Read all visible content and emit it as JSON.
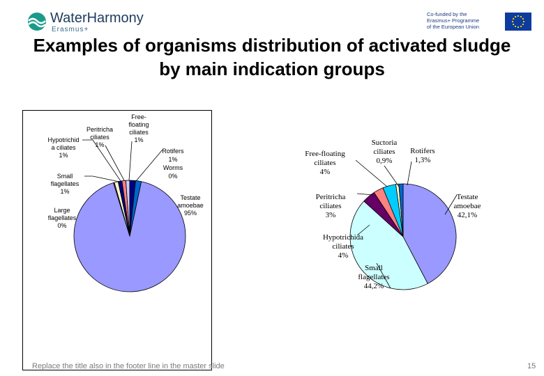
{
  "header": {
    "logo_main": "WaterHarmony",
    "logo_sub": "Erasmus+",
    "eu_line1": "Co-funded by the",
    "eu_line2": "Erasmus+ Programme",
    "eu_line3": "of the European Union"
  },
  "slide": {
    "title": "Examples of organisms distribution of activated sludge by main indication groups",
    "footer": "Replace the title also in the footer line in the master slide",
    "page_number": "15"
  },
  "colors": {
    "slice_main": "#9999ff",
    "slice_dark": "#993366",
    "slice_pink": "#ff8080",
    "slice_blue": "#0066cc",
    "slice_navy": "#000080",
    "slice_cyan": "#ccffff",
    "slice_purple": "#660066",
    "slice_teal": "#00ccff"
  },
  "chart_data": [
    {
      "type": "pie",
      "title": "",
      "slices": [
        {
          "label": "Testate amoebae",
          "value_label": "95%",
          "value": 95
        },
        {
          "label": "Large flagellates",
          "value_label": "0%",
          "value": 0
        },
        {
          "label": "Small flagellates",
          "value_label": "1%",
          "value": 1
        },
        {
          "label": "Hypotrichida ciliates",
          "value_label": "1%",
          "value": 1
        },
        {
          "label": "Peritricha ciliates",
          "value_label": "1%",
          "value": 1
        },
        {
          "label": "Free-floating ciliates",
          "value_label": "1%",
          "value": 1
        },
        {
          "label": "Rotifers",
          "value_label": "1%",
          "value": 1
        },
        {
          "label": "Worms",
          "value_label": "0%",
          "value": 0
        }
      ],
      "labels": {
        "testate": [
          "Testate",
          "amoebae",
          "95%"
        ],
        "large": [
          "Large",
          "flagellates",
          "0%"
        ],
        "small": [
          "Small",
          "flagellates",
          "1%"
        ],
        "hypo": [
          "Hypotrichid",
          "a ciliates",
          "1%"
        ],
        "peri": [
          "Peritricha",
          "ciliates",
          "1%"
        ],
        "free": [
          "Free-",
          "floating",
          "ciliates",
          "1%"
        ],
        "rot": [
          "Rotifers",
          "1%",
          "Worms",
          "0%"
        ]
      }
    },
    {
      "type": "pie",
      "title": "",
      "slices": [
        {
          "label": "Testate amoebae",
          "value_label": "42,1%",
          "value": 42.1
        },
        {
          "label": "Small flagellates",
          "value_label": "44,2%",
          "value": 44.2
        },
        {
          "label": "Hypotrichida ciliates",
          "value_label": "4%",
          "value": 4
        },
        {
          "label": "Peritricha ciliates",
          "value_label": "3%",
          "value": 3
        },
        {
          "label": "Free-floating ciliates",
          "value_label": "4%",
          "value": 4
        },
        {
          "label": "Suctoria ciliates",
          "value_label": "0,9%",
          "value": 0.9
        },
        {
          "label": "Rotifers",
          "value_label": "1,3%",
          "value": 1.3
        }
      ],
      "labels": {
        "testate": [
          "Testate",
          "amoebae",
          "42,1%"
        ],
        "small": [
          "Small",
          "flagellates",
          "44,2%"
        ],
        "hypo": [
          "Hypotrichida",
          "ciliates",
          "4%"
        ],
        "peri": [
          "Peritricha",
          "ciliates",
          "3%"
        ],
        "free": [
          "Free-floating",
          "ciliates",
          "4%"
        ],
        "suct": [
          "Suctoria",
          "ciliates",
          "0,9%"
        ],
        "rot": [
          "Rotifers",
          "1,3%"
        ]
      }
    }
  ]
}
